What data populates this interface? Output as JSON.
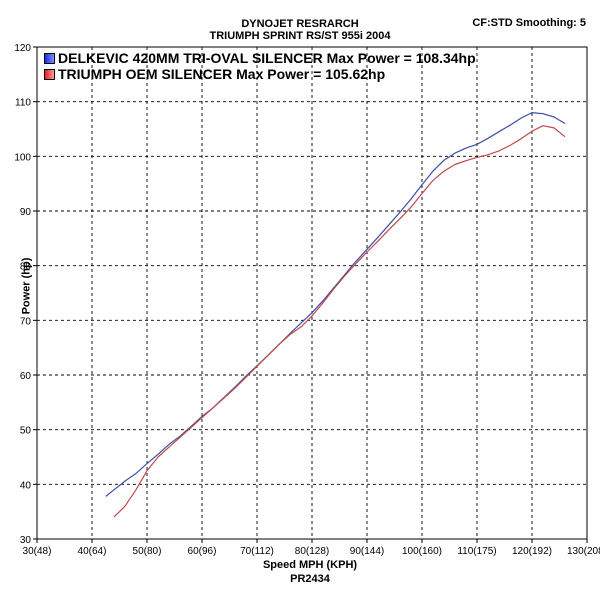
{
  "header": {
    "title_line1": "DYNOJET RESRARCH",
    "title_line2": "TRIUMPH SPRINT RS/ST 955i 2004",
    "correction": "CF:STD Smoothing: 5"
  },
  "footer": {
    "run_id": "PR2434"
  },
  "chart_data": {
    "type": "line",
    "xlabel": "Speed MPH (KPH)",
    "ylabel": "Power (hp)",
    "xlim": [
      30,
      130
    ],
    "ylim": [
      30,
      120
    ],
    "grid": true,
    "legend_position": "top-left",
    "x_tick_labels": [
      "30(48)",
      "40(64)",
      "50(80)",
      "60(96)",
      "70(112)",
      "80(128)",
      "90(144)",
      "100(160)",
      "110(175)",
      "120(192)",
      "130(208)"
    ],
    "y_tick_labels": [
      "30",
      "40",
      "50",
      "60",
      "70",
      "80",
      "90",
      "100",
      "110",
      "120"
    ],
    "series": [
      {
        "name": "DELKEVIC 420MM TRI-OVAL SILENCER Max Power = 108.34hp",
        "color": "#3b4fa8",
        "swatch": "#2f3fd8",
        "x": [
          42.5,
          44,
          46,
          48,
          50,
          52,
          54,
          56,
          58,
          60,
          62,
          64,
          66,
          68,
          70,
          72,
          74,
          76,
          78,
          80,
          82,
          84,
          86,
          88,
          90,
          92,
          94,
          96,
          98,
          100,
          102,
          104,
          106,
          108,
          110,
          112,
          114,
          116,
          118,
          120,
          122,
          124,
          126
        ],
        "y": [
          37.8,
          39,
          40.6,
          42,
          43.8,
          45.5,
          47.3,
          48.8,
          50.6,
          52.4,
          54,
          55.9,
          57.8,
          59.8,
          61.7,
          63.6,
          65.6,
          67.6,
          69.5,
          71.4,
          73.6,
          76,
          78.4,
          80.8,
          83,
          85.2,
          87.5,
          89.8,
          92.2,
          94.8,
          97.3,
          99.3,
          100.6,
          101.5,
          102.2,
          103.3,
          104.5,
          105.7,
          107,
          108,
          107.8,
          107.2,
          106
        ]
      },
      {
        "name": "TRIUMPH OEM SILENCER Max Power = 105.62hp",
        "color": "#c04a4a",
        "swatch": "#e83030",
        "x": [
          44,
          46,
          48,
          50,
          52,
          54,
          56,
          58,
          60,
          62,
          64,
          66,
          68,
          70,
          72,
          74,
          76,
          78,
          80,
          82,
          84,
          86,
          88,
          90,
          92,
          94,
          96,
          98,
          100,
          102,
          104,
          106,
          108,
          110,
          112,
          114,
          116,
          118,
          120,
          122,
          124,
          126
        ],
        "y": [
          34,
          36,
          39,
          42.5,
          45,
          46.8,
          48.6,
          50.4,
          52.2,
          54,
          55.8,
          57.6,
          59.6,
          61.6,
          63.6,
          65.6,
          67.4,
          68.8,
          70.8,
          73.2,
          75.8,
          78.2,
          80.4,
          82.5,
          84.5,
          86.6,
          88.6,
          90.7,
          93.2,
          95.6,
          97.3,
          98.5,
          99.2,
          99.8,
          100.3,
          101,
          102,
          103.2,
          104.6,
          105.6,
          105.2,
          103.6
        ]
      }
    ]
  }
}
